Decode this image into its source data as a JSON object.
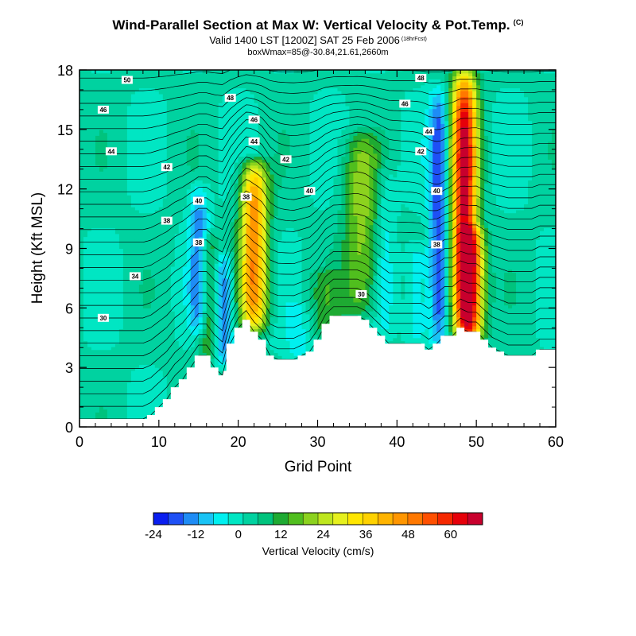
{
  "chart_data": {
    "type": "heatmap",
    "title": "Wind-Parallel Section at Max W: Vertical Velocity & Pot.Temp.",
    "title_tag": "(C)",
    "subtitle": "Valid 1400 LST [1200Z] SAT 25 Feb 2006",
    "subtitle_tag": "(18hrFcst)",
    "box_info": "boxWmax=85@-30.84,21.61,2660m",
    "xlabel": "Grid Point",
    "ylabel": "Height (Kft MSL)",
    "xlim": [
      0,
      60
    ],
    "ylim": [
      0,
      18
    ],
    "x_ticks": [
      0,
      10,
      20,
      30,
      40,
      50,
      60
    ],
    "y_ticks": [
      0,
      3,
      6,
      9,
      12,
      15,
      18
    ],
    "colorbar": {
      "label": "Vertical Velocity (cm/s)",
      "vmin": -24,
      "vmax": 69,
      "tick_values": [
        -24,
        -12,
        0,
        12,
        24,
        36,
        48,
        60
      ],
      "tick_labels": [
        "-24",
        "-12",
        "0",
        "12",
        "24",
        "36",
        "48",
        "60"
      ],
      "colors": [
        "#0a1ef0",
        "#1e50f5",
        "#1e8cf5",
        "#19c3f5",
        "#00f0f0",
        "#00e6c3",
        "#00d2a0",
        "#00c37d",
        "#1eaa32",
        "#50be1e",
        "#8cd21e",
        "#bee61e",
        "#e6f01e",
        "#ffe600",
        "#ffd200",
        "#ffb400",
        "#ff9600",
        "#ff7800",
        "#ff5000",
        "#f52800",
        "#e6000a",
        "#c8002d"
      ]
    },
    "terrain_height_kft": [
      0.4,
      0.4,
      0.4,
      0.4,
      0.4,
      0.4,
      0.4,
      0.4,
      0.4,
      0.6,
      1.0,
      1.4,
      2.0,
      2.4,
      3.0,
      3.6,
      3.6,
      3.0,
      2.6,
      4.2,
      5.0,
      5.4,
      4.8,
      4.4,
      3.6,
      3.4,
      3.4,
      3.4,
      3.6,
      3.8,
      4.4,
      5.2,
      5.6,
      5.6,
      5.6,
      5.6,
      5.4,
      5.0,
      4.6,
      4.2,
      4.2,
      4.2,
      4.2,
      4.2,
      3.9,
      4.2,
      4.6,
      4.6,
      5.0,
      4.8,
      4.8,
      4.4,
      4.0,
      3.8,
      3.6,
      3.6,
      3.6,
      3.6,
      3.9,
      3.9,
      3.9
    ],
    "updrafts": [
      {
        "x": 22,
        "bottom": 5.0,
        "top": 13.2,
        "peak": 45,
        "width": 1.7
      },
      {
        "x": 35.5,
        "bottom": 5.6,
        "top": 14.6,
        "peak": 18,
        "width": 2.3
      },
      {
        "x": 48.5,
        "bottom": 4.2,
        "top": 18,
        "peak": 64,
        "width": 1.6
      },
      {
        "x": 16.3,
        "bottom": 3.6,
        "top": 9.5,
        "peak": 15,
        "width": 1.1
      },
      {
        "x": 49.5,
        "bottom": 4.5,
        "top": 9.8,
        "peak": 32,
        "width": 1.6
      },
      {
        "x": 31,
        "bottom": 5.0,
        "top": 7.5,
        "peak": 8,
        "width": 2.0
      }
    ],
    "downdrafts": [
      {
        "x": 15.0,
        "bottom": 5.0,
        "top": 12.0,
        "peak": -16,
        "width": 1.2
      },
      {
        "x": 18.2,
        "bottom": 3.5,
        "top": 8.5,
        "peak": -17,
        "width": 1.2
      },
      {
        "x": 45.3,
        "bottom": 4.0,
        "top": 17.0,
        "peak": -22,
        "width": 1.2
      },
      {
        "x": 42.5,
        "bottom": 4.5,
        "top": 9.0,
        "peak": -10,
        "width": 1.4
      },
      {
        "x": 27.5,
        "bottom": 3.8,
        "top": 5.8,
        "peak": -7,
        "width": 1.5
      },
      {
        "x": 38.5,
        "bottom": 5.0,
        "top": 13.0,
        "peak": -7,
        "width": 1.2
      }
    ],
    "theta_labels": [
      {
        "text": "50",
        "x": 6,
        "y": 17.5
      },
      {
        "text": "48",
        "x": 43,
        "y": 17.6
      },
      {
        "text": "46",
        "x": 3,
        "y": 16.0
      },
      {
        "text": "48",
        "x": 19,
        "y": 16.6
      },
      {
        "text": "46",
        "x": 41,
        "y": 16.3
      },
      {
        "text": "46",
        "x": 22,
        "y": 15.5
      },
      {
        "text": "44",
        "x": 22,
        "y": 14.4
      },
      {
        "text": "44",
        "x": 44,
        "y": 14.9
      },
      {
        "text": "44",
        "x": 4,
        "y": 13.9
      },
      {
        "text": "42",
        "x": 43,
        "y": 13.9
      },
      {
        "text": "42",
        "x": 26,
        "y": 13.5
      },
      {
        "text": "42",
        "x": 11,
        "y": 13.1
      },
      {
        "text": "40",
        "x": 29,
        "y": 11.9
      },
      {
        "text": "40",
        "x": 45,
        "y": 11.9
      },
      {
        "text": "38",
        "x": 21,
        "y": 11.6
      },
      {
        "text": "40",
        "x": 15,
        "y": 11.4
      },
      {
        "text": "38",
        "x": 11,
        "y": 10.4
      },
      {
        "text": "38",
        "x": 15,
        "y": 9.3
      },
      {
        "text": "38",
        "x": 45,
        "y": 9.2
      },
      {
        "text": "34",
        "x": 7,
        "y": 7.6
      },
      {
        "text": "30",
        "x": 35.5,
        "y": 6.7
      },
      {
        "text": "30",
        "x": 3,
        "y": 5.5
      }
    ]
  }
}
